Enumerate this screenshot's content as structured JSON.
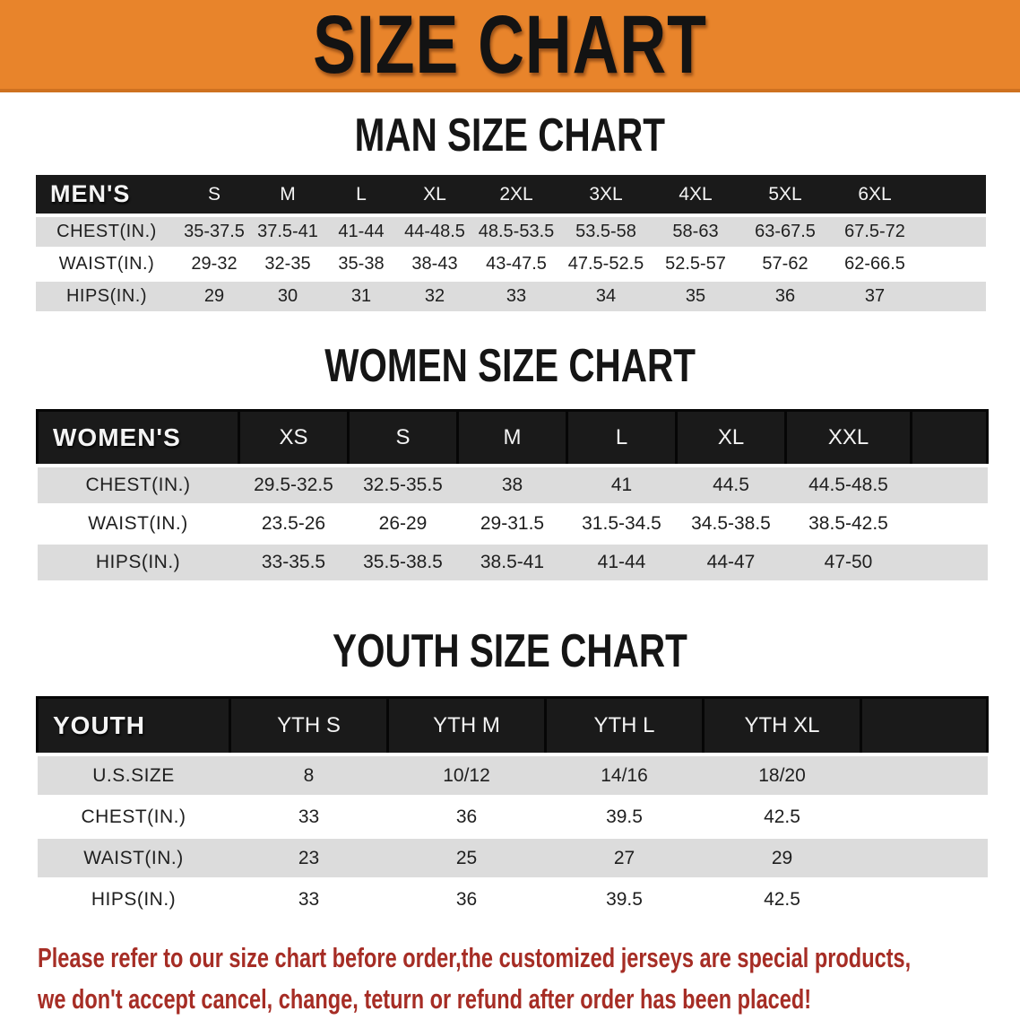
{
  "banner": {
    "title": "SIZE CHART"
  },
  "colors": {
    "banner-bg": "#E8842B",
    "banner-edge": "#CE7120",
    "bar-bg": "#1A1A1A",
    "row-gray": "#DCDCDC",
    "disclaimer-color": "#A62D25"
  },
  "chart_data": [
    {
      "type": "table",
      "id": "men",
      "title": "MAN SIZE CHART",
      "header_label": "MEN'S",
      "columns": [
        "S",
        "M",
        "L",
        "XL",
        "2XL",
        "3XL",
        "4XL",
        "5XL",
        "6XL"
      ],
      "rows": [
        {
          "label": "CHEST(IN.)",
          "values": [
            "35-37.5",
            "37.5-41",
            "41-44",
            "44-48.5",
            "48.5-53.5",
            "53.5-58",
            "58-63",
            "63-67.5",
            "67.5-72"
          ]
        },
        {
          "label": "WAIST(IN.)",
          "values": [
            "29-32",
            "32-35",
            "35-38",
            "38-43",
            "43-47.5",
            "47.5-52.5",
            "52.5-57",
            "57-62",
            "62-66.5"
          ]
        },
        {
          "label": "HIPS(IN.)",
          "values": [
            "29",
            "30",
            "31",
            "32",
            "33",
            "34",
            "35",
            "36",
            "37"
          ]
        }
      ]
    },
    {
      "type": "table",
      "id": "women",
      "title": "WOMEN SIZE CHART",
      "header_label": "WOMEN'S",
      "columns": [
        "XS",
        "S",
        "M",
        "L",
        "XL",
        "XXL"
      ],
      "rows": [
        {
          "label": "CHEST(IN.)",
          "values": [
            "29.5-32.5",
            "32.5-35.5",
            "38",
            "41",
            "44.5",
            "44.5-48.5"
          ]
        },
        {
          "label": "WAIST(IN.)",
          "values": [
            "23.5-26",
            "26-29",
            "29-31.5",
            "31.5-34.5",
            "34.5-38.5",
            "38.5-42.5"
          ]
        },
        {
          "label": "HIPS(IN.)",
          "values": [
            "33-35.5",
            "35.5-38.5",
            "38.5-41",
            "41-44",
            "44-47",
            "47-50"
          ]
        }
      ]
    },
    {
      "type": "table",
      "id": "youth",
      "title": "YOUTH SIZE CHART",
      "header_label": "YOUTH",
      "columns": [
        "YTH S",
        "YTH M",
        "YTH L",
        "YTH XL"
      ],
      "rows": [
        {
          "label": "U.S.SIZE",
          "values": [
            "8",
            "10/12",
            "14/16",
            "18/20"
          ]
        },
        {
          "label": "CHEST(IN.)",
          "values": [
            "33",
            "36",
            "39.5",
            "42.5"
          ]
        },
        {
          "label": "WAIST(IN.)",
          "values": [
            "23",
            "25",
            "27",
            "29"
          ]
        },
        {
          "label": "HIPS(IN.)",
          "values": [
            "33",
            "36",
            "39.5",
            "42.5"
          ]
        }
      ]
    }
  ],
  "disclaimer": {
    "line1": "Please refer to our size chart before order,the customized jerseys are special products,",
    "line2": "we don't accept cancel, change, teturn or refund after order has been placed!"
  }
}
